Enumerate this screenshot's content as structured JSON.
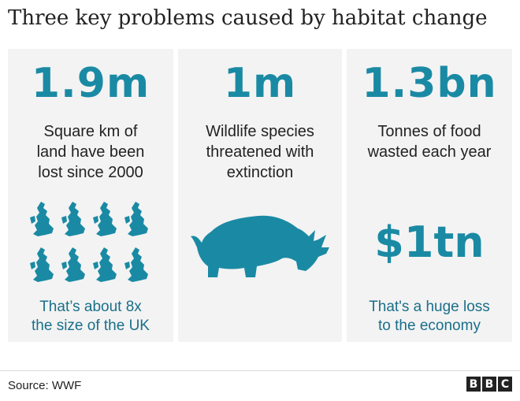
{
  "title": "Three key problems caused by habitat change",
  "panels": [
    {
      "stat": "1.9m",
      "description": [
        "Square km of",
        "land have been",
        "lost since 2000"
      ],
      "icon": "uk-map-icon",
      "note": [
        "That’s about 8x",
        "the size of the UK"
      ]
    },
    {
      "stat": "1m",
      "description": [
        "Wildlife species",
        "threatened with",
        "extinction"
      ],
      "icon": "rhino-icon"
    },
    {
      "stat": "1.3bn",
      "description": [
        "Tonnes of food",
        "wasted each year"
      ],
      "secondary_stat": "$1tn",
      "note": [
        "That's a huge loss",
        "to the economy"
      ]
    }
  ],
  "source": "Source: WWF",
  "logo": [
    "B",
    "B",
    "C"
  ],
  "colors": {
    "accent": "#1a8aa4",
    "panel": "#f3f3f3"
  }
}
